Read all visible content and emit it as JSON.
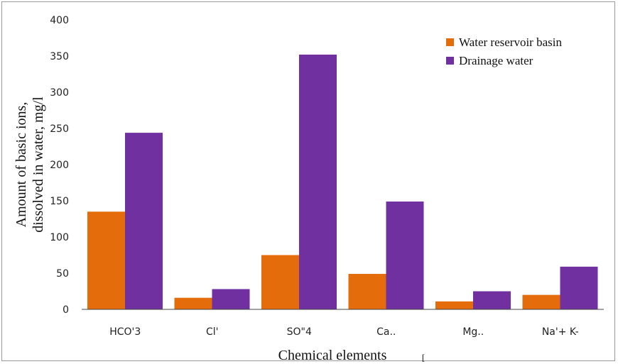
{
  "chart_data": {
    "type": "bar",
    "title": "",
    "xlabel": "Chemical elements",
    "ylabel_lines": [
      "Amount of basic ions,",
      "dissolved in water, mg/l"
    ],
    "ylim": [
      0,
      400
    ],
    "yticks": [
      0,
      50,
      100,
      150,
      200,
      250,
      300,
      350,
      400
    ],
    "grid": false,
    "legend_position": "top-right",
    "categories": [
      "HCO'3",
      "Cl'",
      "SO\"4",
      "Ca..",
      "Mg..",
      "Na'+ K-"
    ],
    "series": [
      {
        "name": "Water reservoir basin",
        "color": "#E46C0A",
        "values": [
          135,
          16,
          75,
          49,
          11,
          20
        ]
      },
      {
        "name": "Drainage water",
        "color": "#7030A0",
        "values": [
          244,
          28,
          352,
          149,
          25,
          59
        ]
      }
    ],
    "stray_mark": "["
  }
}
